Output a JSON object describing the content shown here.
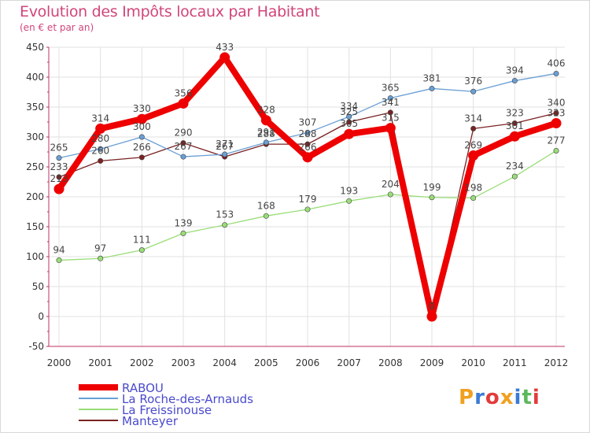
{
  "title": "Evolution des Impôts locaux par Habitant",
  "subtitle": "(en € et par an)",
  "logo": {
    "text": "Proxiti",
    "letters": [
      "P",
      "r",
      "o",
      "x",
      "i",
      "t",
      "i"
    ],
    "colors": [
      "#f0a020",
      "#3a7bd5",
      "#e23b3b",
      "#f0a020",
      "#3a7bd5",
      "#5cb85c",
      "#e23b3b"
    ]
  },
  "chart_data": {
    "type": "line",
    "x": [
      "2000",
      "2001",
      "2002",
      "2003",
      "2004",
      "2005",
      "2006",
      "2007",
      "2008",
      "2009",
      "2010",
      "2011",
      "2012"
    ],
    "ylim": [
      -50,
      450
    ],
    "yticks": [
      "-50",
      "0",
      "50",
      "100",
      "150",
      "200",
      "250",
      "300",
      "350",
      "400",
      "450"
    ],
    "grid": true,
    "legend_position": "bottom-left",
    "series": [
      {
        "name": "RABOU",
        "color": "#ee0000",
        "values": [
          213,
          314,
          330,
          356,
          433,
          328,
          266,
          305,
          315,
          0,
          269,
          301,
          323
        ],
        "labels": [
          "213",
          "314",
          "330",
          "356",
          "433",
          "328",
          "266",
          "305",
          "315",
          "0",
          "269",
          "301",
          "323"
        ]
      },
      {
        "name": "La Roche-des-Arnauds",
        "color": "#6a9fd4",
        "values": [
          265,
          280,
          300,
          267,
          271,
          291,
          307,
          334,
          365,
          381,
          376,
          394,
          406
        ],
        "labels": [
          "265",
          "280",
          "300",
          "267",
          "271",
          "291",
          "307",
          "334",
          "365",
          "381",
          "376",
          "394",
          "406"
        ]
      },
      {
        "name": "La Freissinouse",
        "color": "#99dd77",
        "values": [
          94,
          97,
          111,
          139,
          153,
          168,
          179,
          193,
          204,
          199,
          198,
          234,
          277
        ],
        "labels": [
          "94",
          "97",
          "111",
          "139",
          "153",
          "168",
          "179",
          "193",
          "204",
          "199",
          "198",
          "234",
          "277"
        ]
      },
      {
        "name": "Manteyer",
        "color": "#7a2222",
        "values": [
          233,
          260,
          266,
          290,
          267,
          288,
          288,
          325,
          341,
          0,
          314,
          323,
          340
        ],
        "labels": [
          "233",
          "260",
          "266",
          "290",
          "267",
          "288",
          "288",
          "325",
          "341",
          "0",
          "314",
          "323",
          "340"
        ]
      }
    ]
  }
}
